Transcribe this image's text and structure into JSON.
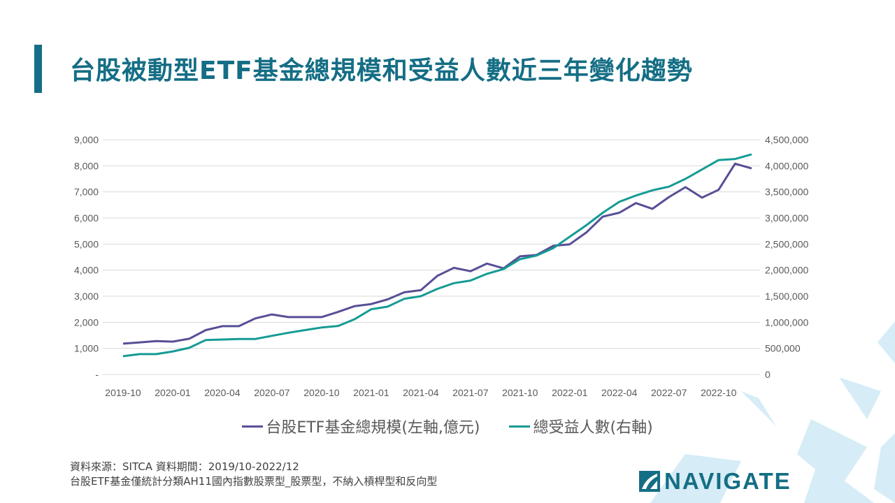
{
  "header": {
    "title": "台股被動型ETF基金總規模和受益人數近三年變化趨勢"
  },
  "colors": {
    "accent": "#146e85",
    "series_size": "#574f96",
    "series_holders": "#159b94",
    "decor": "#d6ecf6"
  },
  "chart_data": {
    "type": "line",
    "title": "",
    "x": [
      "2019-10",
      "2019-11",
      "2019-12",
      "2020-01",
      "2020-02",
      "2020-03",
      "2020-04",
      "2020-05",
      "2020-06",
      "2020-07",
      "2020-08",
      "2020-09",
      "2020-10",
      "2020-11",
      "2020-12",
      "2021-01",
      "2021-02",
      "2021-03",
      "2021-04",
      "2021-05",
      "2021-06",
      "2021-07",
      "2021-08",
      "2021-09",
      "2021-10",
      "2021-11",
      "2021-12",
      "2022-01",
      "2022-02",
      "2022-03",
      "2022-04",
      "2022-05",
      "2022-06",
      "2022-07",
      "2022-08",
      "2022-09",
      "2022-10",
      "2022-11",
      "2022-12"
    ],
    "x_tick_labels": [
      "2019-10",
      "2020-01",
      "2020-04",
      "2020-07",
      "2020-10",
      "2021-01",
      "2021-04",
      "2021-07",
      "2021-10",
      "2022-01",
      "2022-04",
      "2022-07",
      "2022-10"
    ],
    "y_left": {
      "range": [
        0,
        9000
      ],
      "tick_labels": [
        "-",
        "1,000",
        "2,000",
        "3,000",
        "4,000",
        "5,000",
        "6,000",
        "7,000",
        "8,000",
        "9,000"
      ]
    },
    "y_right": {
      "range": [
        0,
        4500000
      ],
      "tick_labels": [
        "0",
        "500,000",
        "1,000,000",
        "1,500,000",
        "2,000,000",
        "2,500,000",
        "3,000,000",
        "3,500,000",
        "4,000,000",
        "4,500,000"
      ]
    },
    "grid": true,
    "legend_placement": "bottom",
    "series": [
      {
        "name": "台股ETF基金總規模(左軸,億元)",
        "axis": "left",
        "color": "#574f96",
        "values": [
          1180,
          1230,
          1280,
          1260,
          1370,
          1700,
          1850,
          1850,
          2150,
          2300,
          2200,
          2200,
          2200,
          2400,
          2620,
          2700,
          2880,
          3150,
          3230,
          3780,
          4090,
          3960,
          4250,
          4070,
          4530,
          4580,
          4930,
          4990,
          5440,
          6050,
          6200,
          6570,
          6350,
          6800,
          7180,
          6780,
          7080,
          8080,
          7900
        ]
      },
      {
        "name": "總受益人數(右軸)",
        "axis": "right",
        "color": "#159b94",
        "values": [
          350000,
          390000,
          390000,
          440000,
          510000,
          660000,
          670000,
          680000,
          680000,
          740000,
          800000,
          850000,
          900000,
          930000,
          1060000,
          1250000,
          1300000,
          1450000,
          1500000,
          1640000,
          1750000,
          1800000,
          1930000,
          2020000,
          2210000,
          2280000,
          2420000,
          2640000,
          2860000,
          3100000,
          3310000,
          3430000,
          3530000,
          3600000,
          3750000,
          3930000,
          4110000,
          4130000,
          4220000
        ]
      }
    ]
  },
  "footer": {
    "source": "資料來源：SITCA  資料期間：2019/10-2022/12",
    "note": "台股ETF基金僅統計分類AH11國內指數股票型_股票型，不納入槓桿型和反向型"
  },
  "logo": {
    "text": "NAVIGATE"
  }
}
